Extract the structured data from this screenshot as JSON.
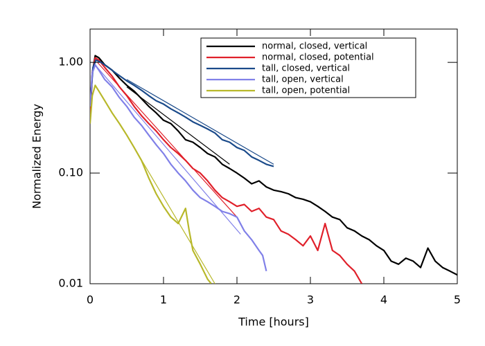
{
  "chart_data": {
    "type": "line",
    "x_label": "Time [hours]",
    "y_label": "Normalized Energy",
    "xlim": [
      0,
      5
    ],
    "xticks": [
      0,
      1,
      2,
      3,
      4,
      5
    ],
    "ylim": [
      0.01,
      2
    ],
    "log_y": true,
    "yticks": [
      {
        "value": 1,
        "label": "1.00"
      },
      {
        "value": 0.1,
        "label": "0.10"
      },
      0.01
    ],
    "legend": "upper right",
    "series": [
      {
        "name": "normal, closed, vertical",
        "color": "#000000",
        "x": [
          0,
          0.03,
          0.07,
          0.12,
          0.2,
          0.3,
          0.4,
          0.5,
          0.6,
          0.7,
          0.8,
          0.9,
          1.0,
          1.1,
          1.2,
          1.3,
          1.4,
          1.5,
          1.6,
          1.7,
          1.8,
          1.9,
          2.0,
          2.1,
          2.2,
          2.3,
          2.4,
          2.5,
          2.6,
          2.7,
          2.8,
          2.9,
          3.0,
          3.1,
          3.2,
          3.3,
          3.4,
          3.5,
          3.6,
          3.7,
          3.8,
          3.9,
          4.0,
          4.1,
          4.2,
          4.3,
          4.4,
          4.5,
          4.6,
          4.7,
          4.8,
          4.9,
          5.0
        ],
        "values": [
          0.3,
          0.8,
          1.15,
          1.1,
          0.95,
          0.85,
          0.72,
          0.62,
          0.55,
          0.47,
          0.4,
          0.35,
          0.3,
          0.28,
          0.24,
          0.2,
          0.19,
          0.17,
          0.15,
          0.14,
          0.12,
          0.11,
          0.1,
          0.09,
          0.08,
          0.085,
          0.075,
          0.07,
          0.068,
          0.065,
          0.06,
          0.058,
          0.055,
          0.05,
          0.045,
          0.04,
          0.038,
          0.032,
          0.03,
          0.027,
          0.025,
          0.022,
          0.02,
          0.016,
          0.015,
          0.017,
          0.016,
          0.014,
          0.021,
          0.016,
          0.014,
          0.013,
          0.012
        ]
      },
      {
        "name": "normal, closed, potential",
        "color": "#e0202a",
        "x": [
          0,
          0.03,
          0.07,
          0.12,
          0.2,
          0.3,
          0.4,
          0.5,
          0.6,
          0.7,
          0.8,
          0.9,
          1.0,
          1.1,
          1.2,
          1.3,
          1.4,
          1.5,
          1.6,
          1.7,
          1.8,
          1.9,
          2.0,
          2.1,
          2.2,
          2.3,
          2.4,
          2.5,
          2.6,
          2.7,
          2.8,
          2.9,
          3.0,
          3.1,
          3.2,
          3.3,
          3.4,
          3.5,
          3.6,
          3.7
        ],
        "values": [
          0.35,
          0.8,
          1.1,
          1.05,
          0.9,
          0.75,
          0.6,
          0.5,
          0.4,
          0.33,
          0.28,
          0.24,
          0.2,
          0.17,
          0.15,
          0.13,
          0.11,
          0.1,
          0.085,
          0.07,
          0.06,
          0.055,
          0.05,
          0.052,
          0.045,
          0.048,
          0.04,
          0.038,
          0.03,
          0.028,
          0.025,
          0.022,
          0.027,
          0.02,
          0.035,
          0.02,
          0.018,
          0.015,
          0.013,
          0.01
        ]
      },
      {
        "name": "tall, closed, vertical",
        "color": "#1a4a8a",
        "x": [
          0,
          0.04,
          0.08,
          0.15,
          0.25,
          0.35,
          0.5,
          0.6,
          0.7,
          0.8,
          0.9,
          1.0,
          1.1,
          1.2,
          1.3,
          1.4,
          1.5,
          1.6,
          1.7,
          1.8,
          1.9,
          2.0,
          2.1,
          2.2,
          2.3,
          2.4,
          2.5
        ],
        "values": [
          0.4,
          0.9,
          1.05,
          1.0,
          0.9,
          0.8,
          0.68,
          0.62,
          0.56,
          0.5,
          0.45,
          0.42,
          0.38,
          0.35,
          0.32,
          0.29,
          0.27,
          0.25,
          0.23,
          0.2,
          0.19,
          0.17,
          0.16,
          0.14,
          0.13,
          0.12,
          0.115
        ]
      },
      {
        "name": "tall, open, vertical",
        "color": "#8080e8",
        "x": [
          0,
          0.03,
          0.07,
          0.12,
          0.2,
          0.3,
          0.4,
          0.5,
          0.6,
          0.7,
          0.8,
          0.9,
          1.0,
          1.1,
          1.2,
          1.3,
          1.4,
          1.5,
          1.6,
          1.7,
          1.8,
          1.9,
          2.0,
          2.1,
          2.2,
          2.3,
          2.35,
          2.4
        ],
        "values": [
          0.4,
          0.8,
          0.95,
          0.85,
          0.7,
          0.6,
          0.48,
          0.4,
          0.32,
          0.27,
          0.22,
          0.18,
          0.15,
          0.12,
          0.1,
          0.085,
          0.07,
          0.06,
          0.055,
          0.05,
          0.045,
          0.043,
          0.04,
          0.03,
          0.025,
          0.02,
          0.018,
          0.013
        ]
      },
      {
        "name": "tall, open, potential",
        "color": "#b8b82a",
        "x": [
          0,
          0.03,
          0.07,
          0.12,
          0.2,
          0.3,
          0.4,
          0.5,
          0.6,
          0.7,
          0.8,
          0.9,
          1.0,
          1.1,
          1.2,
          1.3,
          1.35,
          1.4,
          1.5,
          1.6,
          1.65
        ],
        "values": [
          0.28,
          0.5,
          0.62,
          0.55,
          0.45,
          0.35,
          0.28,
          0.22,
          0.17,
          0.13,
          0.09,
          0.065,
          0.05,
          0.04,
          0.035,
          0.048,
          0.03,
          0.02,
          0.015,
          0.011,
          0.01
        ]
      }
    ],
    "fits": [
      {
        "color": "#000000",
        "x": [
          0.5,
          1.9
        ],
        "values": [
          0.6,
          0.12
        ]
      },
      {
        "color": "#e0202a",
        "x": [
          0.1,
          2.0
        ],
        "values": [
          1.0,
          0.04
        ]
      },
      {
        "color": "#1a4a8a",
        "x": [
          0.5,
          2.5
        ],
        "values": [
          0.7,
          0.12
        ]
      },
      {
        "color": "#8080e8",
        "x": [
          0.1,
          2.05
        ],
        "values": [
          0.9,
          0.028
        ]
      },
      {
        "color": "#b8b82a",
        "x": [
          0.5,
          1.7
        ],
        "values": [
          0.22,
          0.01
        ]
      }
    ]
  }
}
